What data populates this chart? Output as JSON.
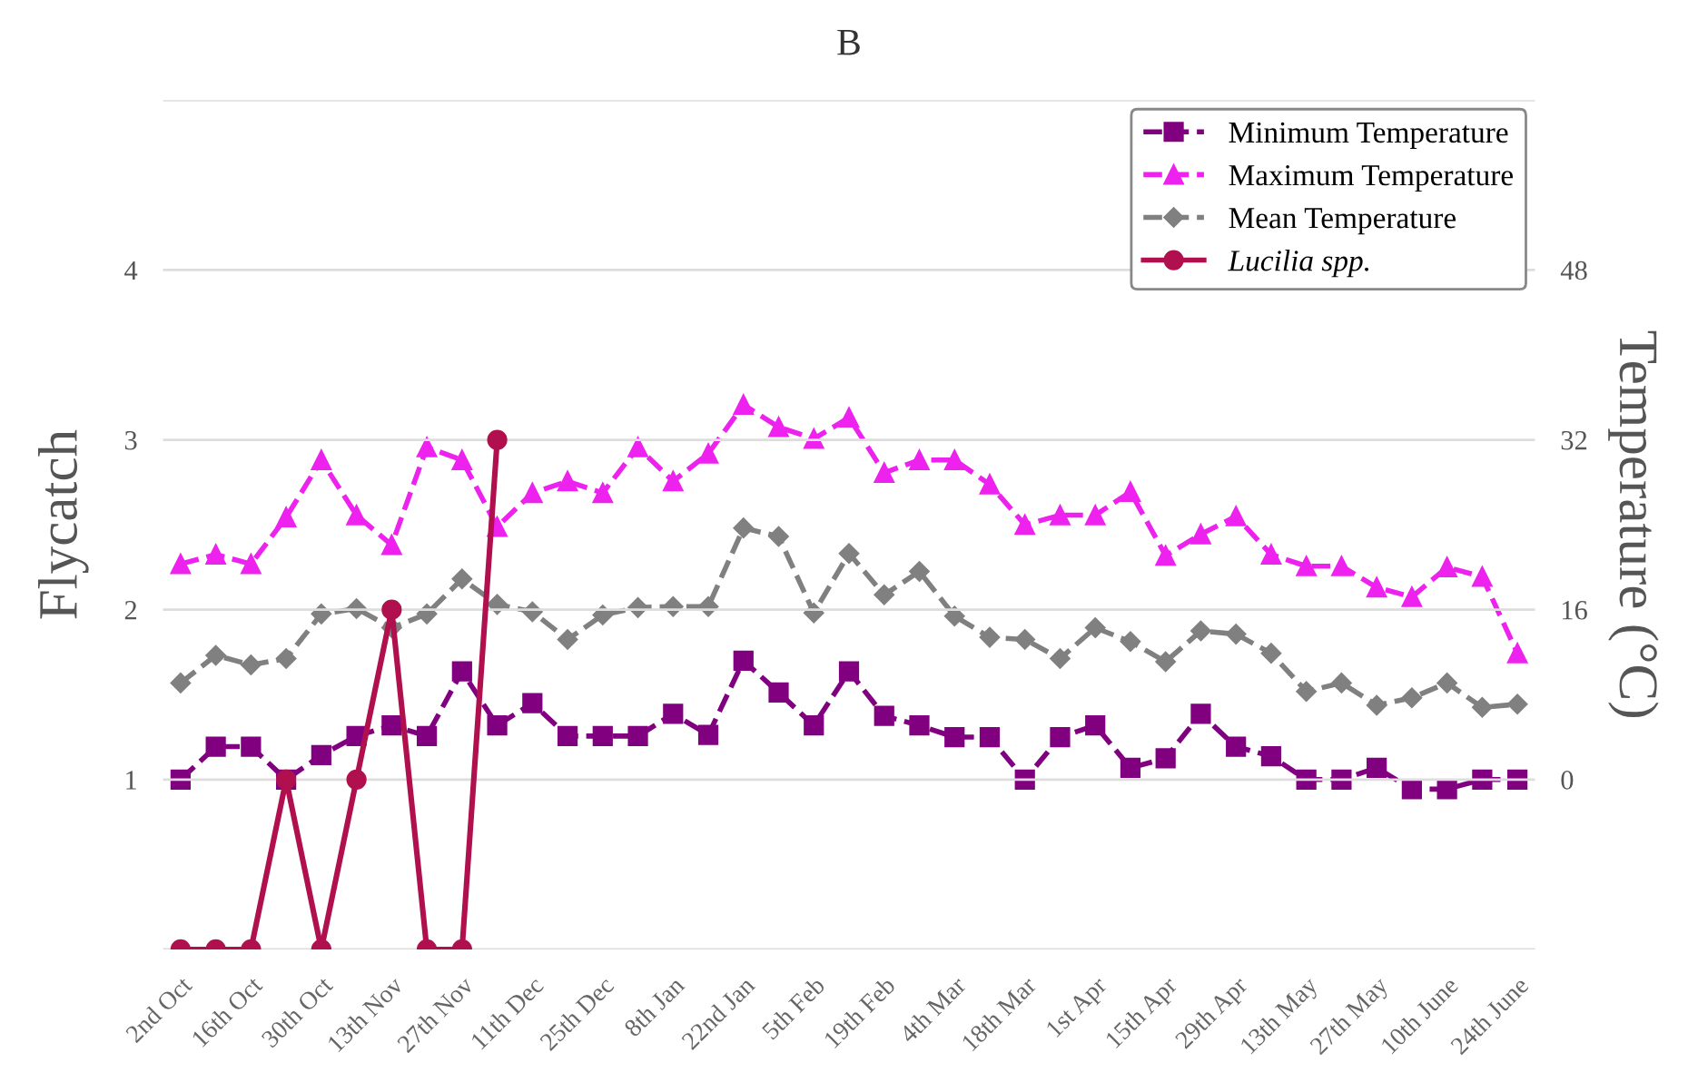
{
  "chart_data": {
    "type": "line",
    "title": "B",
    "ylabel": "Flycatch",
    "y2label": "Temperature (°C)",
    "categories": [
      "2nd Oct",
      null,
      "16th Oct",
      null,
      "30th Oct",
      null,
      "13th Nov",
      null,
      "27th Nov",
      null,
      "11th Dec",
      null,
      "25th Dec",
      null,
      "8th Jan",
      null,
      "22nd Jan",
      null,
      "5th Feb",
      null,
      "19th Feb",
      null,
      "4th Mar",
      null,
      "18th Mar",
      null,
      "1st Apr",
      null,
      "15th Apr",
      null,
      "29th Apr",
      null,
      "13th May",
      null,
      "27th May",
      null,
      "10th June",
      null,
      "24th June"
    ],
    "series": [
      {
        "name": "Minimum Temperature",
        "color": "#800080",
        "axis": "y2",
        "marker": "square",
        "line_style": "dashed",
        "values": [
          0,
          3.1,
          3.1,
          0,
          2.3,
          4.1,
          5.1,
          4.1,
          10.2,
          5.1,
          7.2,
          4.1,
          4.1,
          4.1,
          6.2,
          4.2,
          11.2,
          8.2,
          5.1,
          10.2,
          6.0,
          5.1,
          4.0,
          4.0,
          0,
          4.0,
          5.1,
          1.1,
          2.0,
          6.2,
          3.1,
          2.2,
          0,
          0,
          1.1,
          -0.9,
          -0.9,
          0,
          0
        ]
      },
      {
        "name": "Maximum Temperature",
        "color": "#ee22ee",
        "axis": "y2",
        "marker": "triangle",
        "line_style": "dashed",
        "values": [
          20.3,
          21.2,
          20.3,
          24.7,
          30.1,
          24.9,
          22.1,
          31.3,
          30.1,
          23.8,
          27.0,
          28.1,
          27.0,
          31.3,
          28.1,
          30.7,
          35.3,
          33.2,
          32.1,
          34.1,
          28.9,
          30.1,
          30.1,
          27.8,
          24.0,
          24.9,
          24.9,
          27.1,
          21.1,
          23.1,
          24.8,
          21.2,
          20.1,
          20.1,
          18.1,
          17.2,
          20.0,
          19.1,
          11.9
        ]
      },
      {
        "name": "Mean Temperature",
        "color": "#808080",
        "axis": "y2",
        "marker": "diamond",
        "line_style": "dashed",
        "values": [
          9.1,
          11.7,
          10.8,
          11.4,
          15.6,
          16.1,
          14.3,
          15.6,
          18.9,
          16.5,
          15.8,
          13.2,
          15.5,
          16.2,
          16.3,
          16.3,
          23.7,
          22.9,
          15.7,
          21.3,
          17.4,
          19.6,
          15.4,
          13.4,
          13.2,
          11.4,
          14.3,
          13.0,
          11.1,
          14.0,
          13.7,
          11.9,
          8.3,
          9.1,
          7.0,
          7.7,
          9.1,
          6.8,
          7.1
        ]
      },
      {
        "name": "Lucilia spp.",
        "color": "#b0104e",
        "axis": "y",
        "marker": "circle",
        "line_style": "solid",
        "values": [
          0,
          0,
          0,
          1,
          0,
          1,
          2,
          0,
          0,
          3,
          null,
          null,
          null,
          null,
          null,
          null,
          null,
          null,
          null,
          null,
          null,
          null,
          null,
          null,
          null,
          null,
          null,
          null,
          null,
          null,
          null,
          null,
          null,
          null,
          null,
          null,
          null,
          null,
          null
        ]
      }
    ],
    "ylim": [
      0,
      5
    ],
    "yticks": [
      {
        "value": 0,
        "label": null
      },
      1,
      2,
      3,
      4,
      {
        "value": 5,
        "label": null
      }
    ],
    "y2lim": [
      -16,
      64
    ],
    "y2ticks": [
      0,
      16,
      32,
      48
    ],
    "grid": "y",
    "legend": "top right"
  }
}
